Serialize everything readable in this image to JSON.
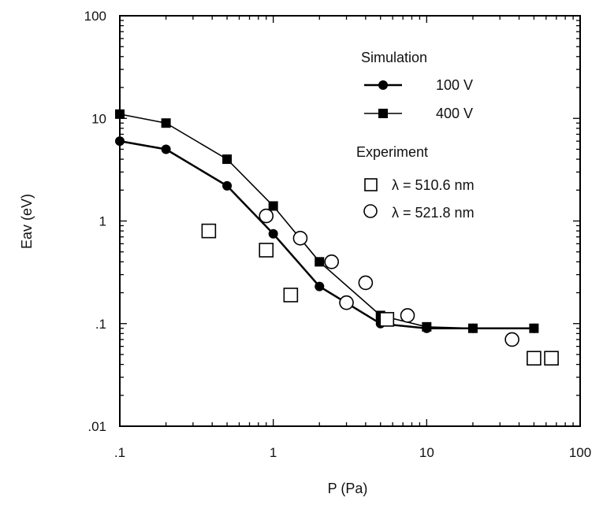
{
  "chart_data": {
    "type": "scatter",
    "title": "",
    "xlabel": "P (Pa)",
    "ylabel": "Eav (eV)",
    "x_scale": "log",
    "y_scale": "log",
    "xlim": [
      0.1,
      100
    ],
    "ylim": [
      0.01,
      100
    ],
    "x_ticks": [
      {
        "value": 0.1,
        "label": ".1"
      },
      {
        "value": 1,
        "label": "1"
      },
      {
        "value": 10,
        "label": "10"
      },
      {
        "value": 100,
        "label": "100"
      }
    ],
    "y_ticks": [
      {
        "value": 0.01,
        "label": ".01"
      },
      {
        "value": 0.1,
        "label": ".1"
      },
      {
        "value": 1,
        "label": "1"
      },
      {
        "value": 10,
        "label": "10"
      },
      {
        "value": 100,
        "label": "100"
      }
    ],
    "grid": false,
    "legend_position": "top-right",
    "legend_groups": [
      {
        "title": "Simulation"
      },
      {
        "title": "Experiment"
      }
    ],
    "series": [
      {
        "name": "100 V",
        "group": "Simulation",
        "marker": "filled-circle",
        "line": true,
        "points": [
          [
            0.1,
            6.0
          ],
          [
            0.2,
            5.0
          ],
          [
            0.5,
            2.2
          ],
          [
            1.0,
            0.75
          ],
          [
            2.0,
            0.23
          ],
          [
            5.0,
            0.1
          ],
          [
            10.0,
            0.09
          ],
          [
            20.0,
            0.09
          ],
          [
            50.0,
            0.09
          ]
        ]
      },
      {
        "name": "400 V",
        "group": "Simulation",
        "marker": "filled-square",
        "line": true,
        "points": [
          [
            0.1,
            11.0
          ],
          [
            0.2,
            9.0
          ],
          [
            0.5,
            4.0
          ],
          [
            1.0,
            1.4
          ],
          [
            2.0,
            0.4
          ],
          [
            5.0,
            0.12
          ],
          [
            10.0,
            0.093
          ],
          [
            20.0,
            0.09
          ],
          [
            50.0,
            0.09
          ]
        ]
      },
      {
        "name": "λ = 510.6 nm",
        "group": "Experiment",
        "marker": "open-square",
        "line": false,
        "points": [
          [
            0.38,
            0.8
          ],
          [
            0.9,
            0.52
          ],
          [
            1.3,
            0.19
          ],
          [
            5.5,
            0.11
          ],
          [
            50.0,
            0.046
          ],
          [
            65.0,
            0.046
          ]
        ]
      },
      {
        "name": "λ = 521.8 nm",
        "group": "Experiment",
        "marker": "open-circle",
        "line": false,
        "points": [
          [
            0.9,
            1.12
          ],
          [
            1.5,
            0.68
          ],
          [
            2.4,
            0.4
          ],
          [
            3.0,
            0.16
          ],
          [
            4.0,
            0.25
          ],
          [
            7.5,
            0.12
          ],
          [
            36.0,
            0.07
          ]
        ]
      }
    ]
  }
}
